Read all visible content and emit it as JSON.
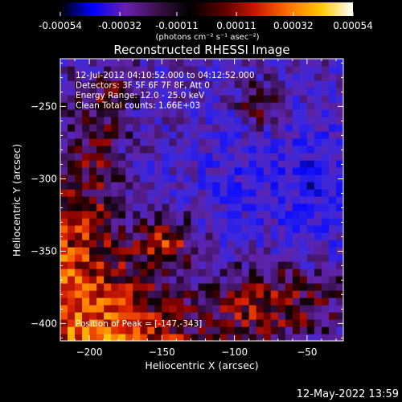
{
  "colorbar": {
    "tick_labels": [
      "-0.00054",
      "-0.00032",
      "-0.00011",
      "0.00011",
      "0.00032",
      "0.00054"
    ],
    "tick_values": [
      -0.00054,
      -0.00032,
      -0.00011,
      0.00011,
      0.00032,
      0.00054
    ],
    "range": [
      -0.00054,
      0.00054
    ],
    "units_label": "(photons cm⁻² s⁻¹ asec⁻²)",
    "colormap": [
      "#000000",
      "#0000ff",
      "#6a1fb0",
      "#3a1048",
      "#000000",
      "#5a0000",
      "#c81800",
      "#ff7000",
      "#ffc800",
      "#ffffff"
    ]
  },
  "chart_data": {
    "type": "heatmap",
    "title": "Reconstructed RHESSI Image",
    "xlabel": "Heliocentric X (arcsec)",
    "ylabel": "Heliocentric Y (arcsec)",
    "xlim": [
      -220,
      -25
    ],
    "ylim": [
      -412,
      -217
    ],
    "x_ticks": [
      -200,
      -150,
      -100,
      -50
    ],
    "y_ticks": [
      -250,
      -300,
      -350,
      -400
    ],
    "grid": false,
    "info_lines": [
      "12-Jul-2012 04:10:52.000 to 04:12:52.000",
      "Detectors: 3F 5F 6F 7F 8F, Att 0",
      "Energy Range: 12.0 - 25.0 keV",
      "Clean    Total counts: 1.66E+03"
    ],
    "peak_position": [
      -147,
      -343
    ],
    "peak_label": "Position of Peak = [-147,-343]",
    "pixel_size_arcsec": 5
  },
  "footer": {
    "timestamp": "12-May-2022 13:59"
  }
}
